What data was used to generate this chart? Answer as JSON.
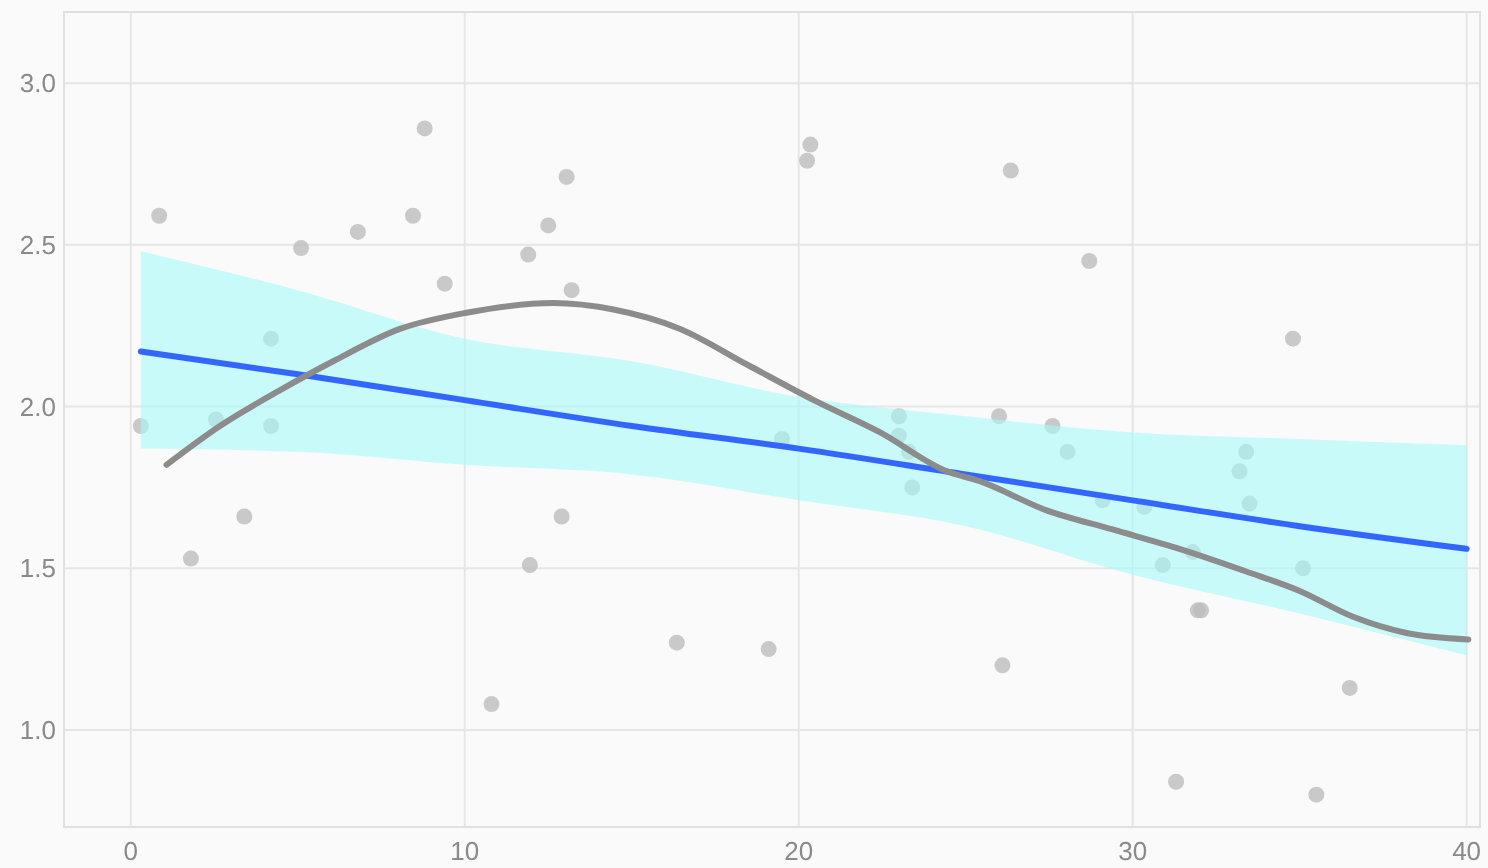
{
  "chart_data": {
    "type": "scatter",
    "xlim": [
      -2,
      40.4
    ],
    "ylim": [
      0.7,
      3.22
    ],
    "xticks": [
      0,
      10,
      20,
      30,
      40
    ],
    "yticks": [
      {
        "value": 1,
        "label": "1.0"
      },
      {
        "value": 1.5,
        "label": "1.5"
      },
      {
        "value": 2,
        "label": "2.0"
      },
      {
        "value": 2.5,
        "label": "2.5"
      },
      {
        "value": 3,
        "label": "3.0"
      }
    ],
    "grid": true,
    "marker": "circle",
    "series": [
      {
        "color": "#bdbdbd",
        "x": [
          0.3,
          0.85,
          1.8,
          2.55,
          3.4,
          4.2,
          4.2,
          5.1,
          6.8,
          8.45,
          8.8,
          9.4,
          10.8,
          11.9,
          11.95,
          12.5,
          12.9,
          13.05,
          13.2,
          16.35,
          19.1,
          19.5,
          20.25,
          20.35,
          23.0,
          23.0,
          23.3,
          23.4,
          26.0,
          26.1,
          26.35,
          27.6,
          28.05,
          28.7,
          29.1,
          30.35,
          30.9,
          31.3,
          31.8,
          31.95,
          32.05,
          33.2,
          33.4,
          33.5,
          34.8,
          35.1,
          35.5,
          36.5
        ],
        "values": [
          1.94,
          2.59,
          1.53,
          1.96,
          1.66,
          2.21,
          1.94,
          2.49,
          2.54,
          2.59,
          2.86,
          2.38,
          1.08,
          2.47,
          1.51,
          2.56,
          1.66,
          2.71,
          2.36,
          1.27,
          1.25,
          1.9,
          2.76,
          2.81,
          1.97,
          1.91,
          1.86,
          1.75,
          1.97,
          1.2,
          2.73,
          1.94,
          1.86,
          2.45,
          1.71,
          1.69,
          1.51,
          0.84,
          1.55,
          1.37,
          1.37,
          1.8,
          1.86,
          1.7,
          2.21,
          1.5,
          0.8,
          1.13
        ]
      },
      {
        "type": "line",
        "color": "#3366ff",
        "marker": "none",
        "x": [
          0.3,
          5,
          10,
          15,
          20,
          25,
          30,
          35,
          40
        ],
        "values": [
          2.17,
          2.1,
          2.02,
          1.94,
          1.87,
          1.79,
          1.71,
          1.63,
          1.56
        ],
        "lower": [
          1.87,
          1.86,
          1.82,
          1.79,
          1.71,
          1.63,
          1.48,
          1.36,
          1.23
        ],
        "upper": [
          2.48,
          2.36,
          2.21,
          2.14,
          2.03,
          1.97,
          1.92,
          1.9,
          1.88
        ]
      },
      {
        "type": "line",
        "color": "#8c8c8c",
        "marker": "none",
        "x": [
          1.07,
          2.67,
          4.46,
          6.06,
          8.06,
          10.05,
          12.65,
          14.45,
          16.45,
          18.45,
          20.45,
          22.44,
          24.43,
          25.4,
          27.4,
          29.4,
          31.4,
          33.4,
          35.0,
          36.6,
          38.2,
          40.05
        ],
        "values": [
          1.82,
          1.94,
          2.05,
          2.14,
          2.24,
          2.29,
          2.32,
          2.3,
          2.24,
          2.13,
          2.02,
          1.92,
          1.8,
          1.77,
          1.68,
          1.62,
          1.56,
          1.49,
          1.43,
          1.35,
          1.3,
          1.28
        ]
      }
    ]
  }
}
